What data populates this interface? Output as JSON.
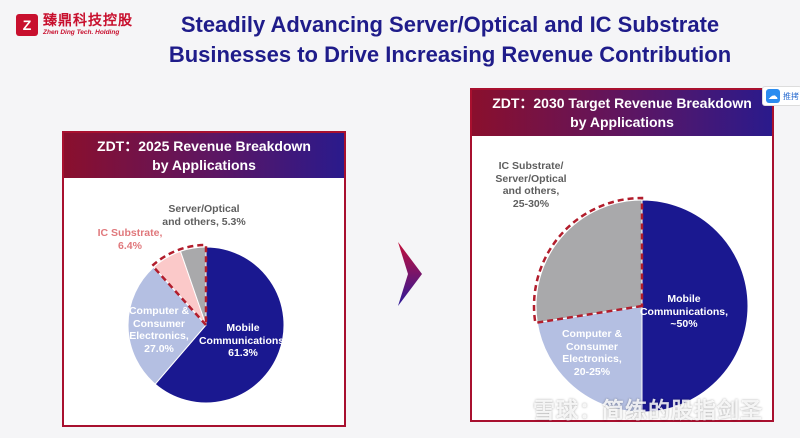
{
  "logo": {
    "mark": "Z",
    "name_cn": "臻鼎科技控股",
    "name_en": "Zhen Ding Tech. Holding"
  },
  "title_line1": "Steadily Advancing Server/Optical and IC Substrate",
  "title_line2": "Businesses to Drive Increasing Revenue Contribution",
  "side_badge": {
    "icon": "cloud-icon",
    "text": "推拷"
  },
  "watermark": "雪球：简练的股指剑圣",
  "colors": {
    "navy": "#1a1890",
    "light_blue": "#b4bfe2",
    "gray": "#a9a9ab",
    "pink": "#fbc9c9",
    "dashed_red": "#b21d2c"
  },
  "chart_data": [
    {
      "type": "pie",
      "title_line1": "ZDT：2025 Revenue Breakdown",
      "title_line2": "by Applications",
      "slices": [
        {
          "label_lines": [
            "Mobile",
            "Communications,",
            "61.3%"
          ],
          "value": 61.3,
          "color": "#1a1890",
          "highlight": false
        },
        {
          "label_lines": [
            "Computer &",
            "Consumer",
            "Electronics,",
            "27.0%"
          ],
          "value": 27.0,
          "color": "#b4bfe2",
          "highlight": false
        },
        {
          "label_lines": [
            "IC Substrate,",
            "6.4%"
          ],
          "value": 6.4,
          "color": "#fbc9c9",
          "highlight": true
        },
        {
          "label_lines": [
            "Server/Optical",
            "and others, 5.3%"
          ],
          "value": 5.3,
          "color": "#a9a9ab",
          "highlight": true
        }
      ]
    },
    {
      "type": "pie",
      "title_line1": "ZDT：2030 Target Revenue Breakdown",
      "title_line2": "by Applications",
      "slices": [
        {
          "label_lines": [
            "Mobile",
            "Communications,",
            "~50%"
          ],
          "value": 50,
          "color": "#1a1890",
          "highlight": false
        },
        {
          "label_lines": [
            "Computer &",
            "Consumer",
            "Electronics,",
            "20-25%"
          ],
          "value": 22.5,
          "color": "#b4bfe2",
          "highlight": false
        },
        {
          "label_lines": [
            "IC Substrate/",
            "Server/Optical",
            "and others,",
            "25-30%"
          ],
          "value": 27.5,
          "color": "#a9a9ab",
          "highlight": true
        }
      ]
    }
  ]
}
